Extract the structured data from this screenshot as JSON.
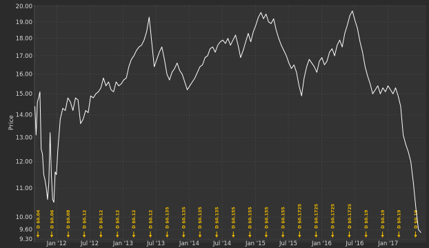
{
  "chart_data": {
    "type": "line",
    "title": "",
    "xlabel": "",
    "ylabel": "Price",
    "y_axis_scale": "log",
    "ylim": [
      9.2,
      20.1
    ],
    "xlim": [
      "2011-09-01",
      "2017-07-30"
    ],
    "y_ticks": [
      "9.30",
      "9.60",
      "10.00",
      "11.00",
      "12.00",
      "13.00",
      "14.00",
      "15.00",
      "16.00",
      "17.00",
      "18.00",
      "19.00",
      "20.00"
    ],
    "x_ticks": [
      {
        "label": "Jan '12",
        "date": "2012-01-01"
      },
      {
        "label": "Jul '12",
        "date": "2012-07-01"
      },
      {
        "label": "Jan '13",
        "date": "2013-01-01"
      },
      {
        "label": "Jul '13",
        "date": "2013-07-01"
      },
      {
        "label": "Jan '14",
        "date": "2014-01-01"
      },
      {
        "label": "Jul '14",
        "date": "2014-07-01"
      },
      {
        "label": "Jan '15",
        "date": "2015-01-01"
      },
      {
        "label": "Jul '15",
        "date": "2015-07-01"
      },
      {
        "label": "Jan '16",
        "date": "2016-01-01"
      },
      {
        "label": "Jul '16",
        "date": "2016-07-01"
      },
      {
        "label": "Jan '17",
        "date": "2017-01-01"
      }
    ],
    "grid": true,
    "line_color": "#ffffff",
    "dividend_color": "#e8b400",
    "series": [
      {
        "points": [
          [
            "2011-09-03",
            14.4
          ],
          [
            "2011-09-10",
            13.1
          ],
          [
            "2011-09-17",
            14.6
          ],
          [
            "2011-09-24",
            14.8
          ],
          [
            "2011-10-01",
            15.1
          ],
          [
            "2011-10-08",
            12.5
          ],
          [
            "2011-10-15",
            12.3
          ],
          [
            "2011-10-22",
            11.5
          ],
          [
            "2011-10-29",
            11.3
          ],
          [
            "2011-11-05",
            11.0
          ],
          [
            "2011-11-12",
            10.6
          ],
          [
            "2011-11-19",
            11.2
          ],
          [
            "2011-11-26",
            13.2
          ],
          [
            "2011-12-03",
            11.5
          ],
          [
            "2011-12-10",
            10.6
          ],
          [
            "2011-12-17",
            10.5
          ],
          [
            "2011-12-24",
            11.6
          ],
          [
            "2011-12-31",
            11.5
          ],
          [
            "2012-01-07",
            12.4
          ],
          [
            "2012-01-21",
            13.8
          ],
          [
            "2012-02-04",
            14.3
          ],
          [
            "2012-02-18",
            14.2
          ],
          [
            "2012-03-03",
            14.8
          ],
          [
            "2012-03-17",
            14.6
          ],
          [
            "2012-03-31",
            14.2
          ],
          [
            "2012-04-14",
            14.8
          ],
          [
            "2012-04-28",
            14.7
          ],
          [
            "2012-05-12",
            13.6
          ],
          [
            "2012-05-26",
            13.8
          ],
          [
            "2012-06-09",
            14.2
          ],
          [
            "2012-06-23",
            14.1
          ],
          [
            "2012-07-07",
            14.9
          ],
          [
            "2012-07-21",
            14.8
          ],
          [
            "2012-08-04",
            15.0
          ],
          [
            "2012-08-18",
            15.1
          ],
          [
            "2012-09-01",
            15.3
          ],
          [
            "2012-09-15",
            15.8
          ],
          [
            "2012-09-29",
            15.4
          ],
          [
            "2012-10-13",
            15.6
          ],
          [
            "2012-10-27",
            15.2
          ],
          [
            "2012-11-10",
            15.1
          ],
          [
            "2012-11-24",
            15.6
          ],
          [
            "2012-12-08",
            15.4
          ],
          [
            "2012-12-22",
            15.5
          ],
          [
            "2013-01-05",
            15.7
          ],
          [
            "2013-01-19",
            15.8
          ],
          [
            "2013-02-02",
            16.4
          ],
          [
            "2013-02-16",
            16.8
          ],
          [
            "2013-03-02",
            17.0
          ],
          [
            "2013-03-16",
            17.3
          ],
          [
            "2013-03-30",
            17.5
          ],
          [
            "2013-04-13",
            17.6
          ],
          [
            "2013-04-27",
            17.9
          ],
          [
            "2013-05-11",
            18.4
          ],
          [
            "2013-05-25",
            19.3
          ],
          [
            "2013-06-08",
            17.8
          ],
          [
            "2013-06-22",
            16.4
          ],
          [
            "2013-07-06",
            16.8
          ],
          [
            "2013-07-20",
            17.2
          ],
          [
            "2013-08-03",
            17.5
          ],
          [
            "2013-08-17",
            16.8
          ],
          [
            "2013-08-31",
            16.0
          ],
          [
            "2013-09-14",
            15.7
          ],
          [
            "2013-09-28",
            16.1
          ],
          [
            "2013-10-12",
            16.3
          ],
          [
            "2013-10-26",
            16.6
          ],
          [
            "2013-11-09",
            16.2
          ],
          [
            "2013-11-23",
            16.0
          ],
          [
            "2013-12-07",
            15.6
          ],
          [
            "2013-12-21",
            15.2
          ],
          [
            "2014-01-04",
            15.4
          ],
          [
            "2014-01-18",
            15.6
          ],
          [
            "2014-02-01",
            15.8
          ],
          [
            "2014-02-15",
            16.1
          ],
          [
            "2014-03-01",
            16.4
          ],
          [
            "2014-03-15",
            16.5
          ],
          [
            "2014-03-29",
            16.9
          ],
          [
            "2014-04-12",
            17.0
          ],
          [
            "2014-04-26",
            17.4
          ],
          [
            "2014-05-10",
            17.5
          ],
          [
            "2014-05-24",
            17.2
          ],
          [
            "2014-06-07",
            17.6
          ],
          [
            "2014-06-21",
            17.8
          ],
          [
            "2014-07-05",
            17.9
          ],
          [
            "2014-07-19",
            17.7
          ],
          [
            "2014-08-02",
            18.0
          ],
          [
            "2014-08-16",
            17.6
          ],
          [
            "2014-08-30",
            17.9
          ],
          [
            "2014-09-13",
            18.2
          ],
          [
            "2014-09-27",
            17.6
          ],
          [
            "2014-10-11",
            16.9
          ],
          [
            "2014-10-25",
            17.3
          ],
          [
            "2014-11-08",
            17.8
          ],
          [
            "2014-11-22",
            18.3
          ],
          [
            "2014-12-06",
            17.8
          ],
          [
            "2014-12-20",
            18.4
          ],
          [
            "2015-01-03",
            18.8
          ],
          [
            "2015-01-17",
            19.3
          ],
          [
            "2015-01-31",
            19.6
          ],
          [
            "2015-02-14",
            19.2
          ],
          [
            "2015-02-28",
            19.5
          ],
          [
            "2015-03-14",
            19.0
          ],
          [
            "2015-03-28",
            18.9
          ],
          [
            "2015-04-11",
            19.2
          ],
          [
            "2015-04-25",
            18.5
          ],
          [
            "2015-05-09",
            18.0
          ],
          [
            "2015-05-23",
            17.6
          ],
          [
            "2015-06-06",
            17.3
          ],
          [
            "2015-06-20",
            17.0
          ],
          [
            "2015-07-04",
            16.6
          ],
          [
            "2015-07-18",
            16.3
          ],
          [
            "2015-08-01",
            16.5
          ],
          [
            "2015-08-15",
            16.1
          ],
          [
            "2015-08-29",
            15.4
          ],
          [
            "2015-09-12",
            14.9
          ],
          [
            "2015-09-26",
            15.8
          ],
          [
            "2015-10-10",
            16.4
          ],
          [
            "2015-10-24",
            16.8
          ],
          [
            "2015-11-07",
            16.6
          ],
          [
            "2015-11-21",
            16.4
          ],
          [
            "2015-12-05",
            16.1
          ],
          [
            "2015-12-19",
            16.7
          ],
          [
            "2016-01-02",
            16.9
          ],
          [
            "2016-01-16",
            16.5
          ],
          [
            "2016-01-30",
            16.7
          ],
          [
            "2016-02-13",
            17.2
          ],
          [
            "2016-02-27",
            17.4
          ],
          [
            "2016-03-12",
            17.0
          ],
          [
            "2016-03-26",
            17.6
          ],
          [
            "2016-04-09",
            17.9
          ],
          [
            "2016-04-23",
            17.5
          ],
          [
            "2016-05-07",
            18.3
          ],
          [
            "2016-05-21",
            18.8
          ],
          [
            "2016-06-04",
            19.4
          ],
          [
            "2016-06-18",
            19.7
          ],
          [
            "2016-07-02",
            19.1
          ],
          [
            "2016-07-16",
            18.6
          ],
          [
            "2016-07-30",
            17.8
          ],
          [
            "2016-08-13",
            17.2
          ],
          [
            "2016-08-27",
            16.4
          ],
          [
            "2016-09-10",
            15.9
          ],
          [
            "2016-09-24",
            15.5
          ],
          [
            "2016-10-08",
            15.0
          ],
          [
            "2016-10-22",
            15.2
          ],
          [
            "2016-11-05",
            15.4
          ],
          [
            "2016-11-19",
            15.0
          ],
          [
            "2016-12-03",
            15.3
          ],
          [
            "2016-12-17",
            15.1
          ],
          [
            "2016-12-31",
            15.4
          ],
          [
            "2017-01-14",
            15.2
          ],
          [
            "2017-01-28",
            15.0
          ],
          [
            "2017-02-11",
            15.3
          ],
          [
            "2017-02-25",
            14.9
          ],
          [
            "2017-03-11",
            14.4
          ],
          [
            "2017-03-25",
            13.1
          ],
          [
            "2017-04-08",
            12.7
          ],
          [
            "2017-04-22",
            12.4
          ],
          [
            "2017-05-06",
            12.0
          ],
          [
            "2017-05-20",
            11.2
          ],
          [
            "2017-06-03",
            10.3
          ],
          [
            "2017-06-17",
            9.6
          ],
          [
            "2017-07-01",
            9.5
          ]
        ]
      }
    ],
    "dividends": [
      {
        "date": "2011-09-20",
        "label": "D $0.04"
      },
      {
        "date": "2011-12-05",
        "label": "D $0.06"
      },
      {
        "date": "2012-03-05",
        "label": "D $0.08"
      },
      {
        "date": "2012-06-01",
        "label": "D $0.12"
      },
      {
        "date": "2012-09-01",
        "label": "D $0.12"
      },
      {
        "date": "2012-12-01",
        "label": "D $0.12"
      },
      {
        "date": "2013-03-01",
        "label": "D $0.12"
      },
      {
        "date": "2013-06-01",
        "label": "D $0.12"
      },
      {
        "date": "2013-09-01",
        "label": "D $0.135"
      },
      {
        "date": "2013-12-01",
        "label": "D $0.135"
      },
      {
        "date": "2014-03-01",
        "label": "D $0.135"
      },
      {
        "date": "2014-06-01",
        "label": "D $0.135"
      },
      {
        "date": "2014-09-01",
        "label": "D $0.155"
      },
      {
        "date": "2014-12-01",
        "label": "D $0.155"
      },
      {
        "date": "2015-03-01",
        "label": "D $0.155"
      },
      {
        "date": "2015-06-01",
        "label": "D $0.155"
      },
      {
        "date": "2015-09-01",
        "label": "D $0.1725"
      },
      {
        "date": "2015-12-01",
        "label": "D $0.1725"
      },
      {
        "date": "2016-03-01",
        "label": "D $0.1725"
      },
      {
        "date": "2016-06-01",
        "label": "D $0.1725"
      },
      {
        "date": "2016-09-01",
        "label": "D $0.19"
      },
      {
        "date": "2016-12-01",
        "label": "D $0.19"
      },
      {
        "date": "2017-03-01",
        "label": "D $0.19"
      },
      {
        "date": "2017-06-01",
        "label": "D $0.19"
      }
    ]
  }
}
